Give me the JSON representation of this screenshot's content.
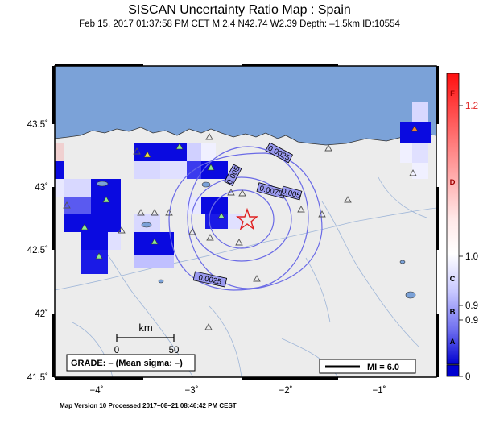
{
  "title": "SISCAN Uncertainty Ratio Map : Spain",
  "subtitle": "Feb 15, 2017 01:37:58 PM CET   M 2.4   N42.74 W2.39   Depth: –1.5km   ID:10554",
  "footer": "Map Version 10 Processed 2017–08–21 08:46:42 PM CEST",
  "map": {
    "lat_ticks": [
      "43.5˚",
      "43˚",
      "42.5˚",
      "42˚",
      "41.5˚"
    ],
    "lon_ticks": [
      "−4˚",
      "−3˚",
      "−2˚",
      "−1˚"
    ],
    "contours": [
      "0.0025",
      "0.005",
      "0.0075",
      "0.005",
      "0.0025"
    ],
    "epicenter": {
      "lat": 42.74,
      "lon": -2.39
    }
  },
  "scale_bar": {
    "unit": "km",
    "labels": [
      "0",
      "50"
    ]
  },
  "grade_box": "GRADE: – (Mean sigma: –)",
  "mi_legend": "MI = 6.0",
  "colorbar": {
    "letters": [
      "F",
      "D",
      "C",
      "B",
      "A"
    ],
    "values": [
      "1.2",
      "1.0",
      "0.9",
      "0.9",
      "0"
    ]
  },
  "colors": {
    "sea": "#7ba2d8",
    "land": "#ececec",
    "cell_dark": "#0a0ae0",
    "epicenter": "#e02020"
  }
}
